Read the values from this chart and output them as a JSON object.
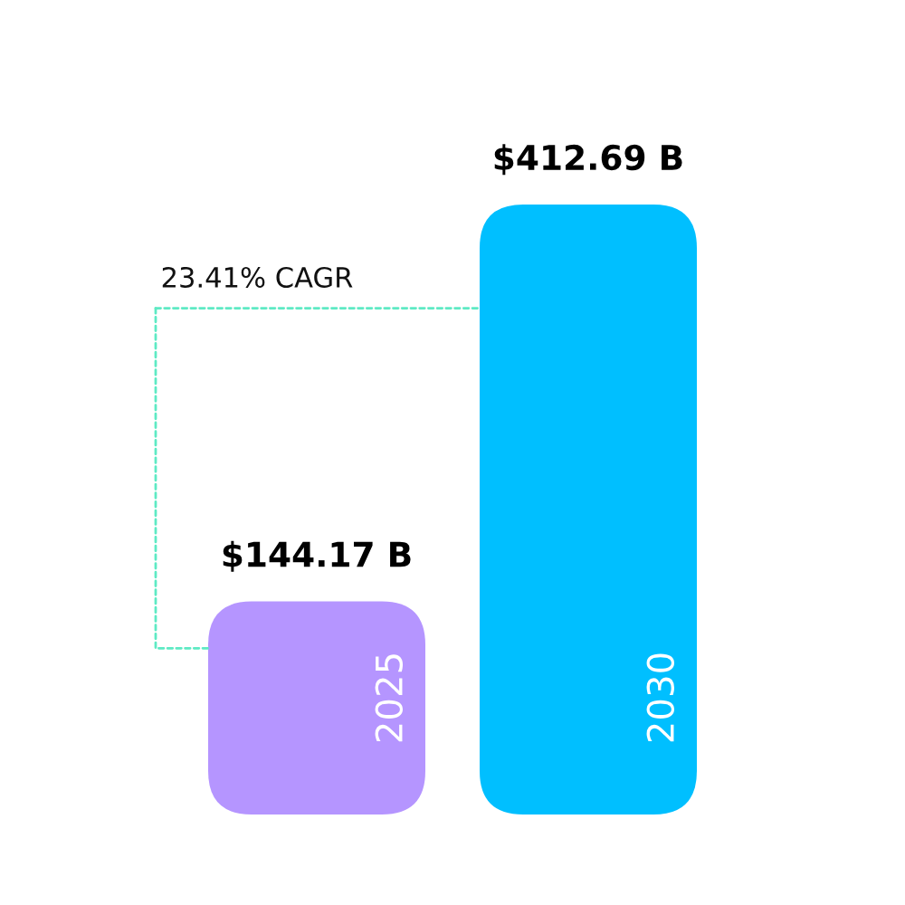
{
  "chart_data": {
    "type": "bar",
    "categories": [
      "2025",
      "2030"
    ],
    "values": [
      144.17,
      412.69
    ],
    "colors": [
      "#b595ff",
      "#00bfff"
    ],
    "value_labels": [
      "$144.17 B",
      "$412.69 B"
    ],
    "annotations": [
      "23.41% CAGR"
    ],
    "tick_labels": "x"
  }
}
